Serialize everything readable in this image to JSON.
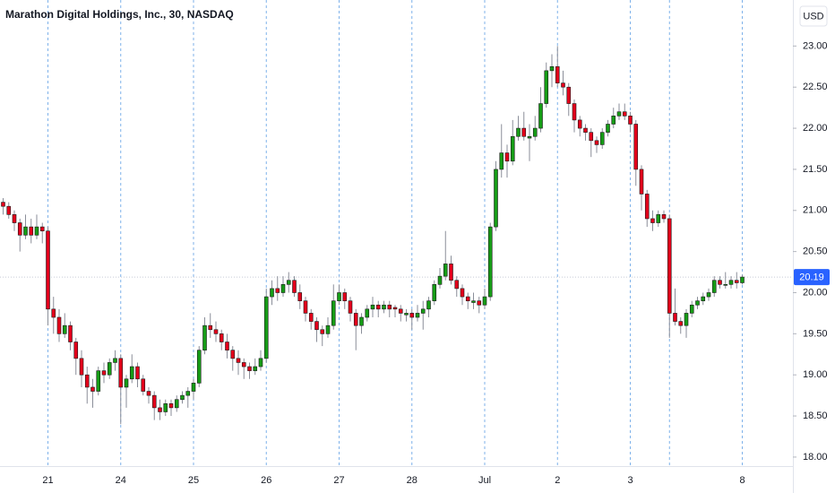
{
  "chart_data": {
    "type": "candlestick",
    "title": "Marathon Digital Holdings, Inc., 30, NASDAQ",
    "currency": "USD",
    "colors": {
      "up": "#169c16",
      "down": "#e3001b",
      "wick": "#8a8e99",
      "day_line": "#7fb2ea",
      "price_tag": "#2962ff"
    },
    "ylim": [
      17.89,
      23.56
    ],
    "yticks": [
      {
        "value": 18,
        "label": "18.00"
      },
      {
        "value": 18.5,
        "label": "18.50"
      },
      {
        "value": 19,
        "label": "19.00"
      },
      {
        "value": 19.5,
        "label": "19.50"
      },
      {
        "value": 20,
        "label": "20.00"
      },
      {
        "value": 20.5,
        "label": "20.50"
      },
      {
        "value": 21,
        "label": "21.00"
      },
      {
        "value": 21.5,
        "label": "21.50"
      },
      {
        "value": 22,
        "label": "22.00"
      },
      {
        "value": 22.5,
        "label": "22.50"
      },
      {
        "value": 23,
        "label": "23.00"
      }
    ],
    "day_starts": [
      8,
      21,
      34,
      47,
      60,
      73,
      86,
      99,
      112,
      119,
      132
    ],
    "day_labels": [
      "21",
      "24",
      "25",
      "26",
      "27",
      "28",
      "Jul",
      "2",
      "3",
      null,
      "8"
    ],
    "candles": [
      [
        21.1,
        21.15,
        20.95,
        21.05
      ],
      [
        21.05,
        21.1,
        20.9,
        20.95
      ],
      [
        20.95,
        21.0,
        20.75,
        20.85
      ],
      [
        20.85,
        20.9,
        20.5,
        20.7
      ],
      [
        20.7,
        20.95,
        20.65,
        20.8
      ],
      [
        20.8,
        20.9,
        20.6,
        20.7
      ],
      [
        20.7,
        20.95,
        20.65,
        20.8
      ],
      [
        20.8,
        20.85,
        20.6,
        20.75
      ],
      [
        20.75,
        20.8,
        19.6,
        19.8
      ],
      [
        19.8,
        19.95,
        19.5,
        19.7
      ],
      [
        19.7,
        19.8,
        19.4,
        19.5
      ],
      [
        19.5,
        19.75,
        19.45,
        19.6
      ],
      [
        19.6,
        19.65,
        19.3,
        19.4
      ],
      [
        19.4,
        19.45,
        19.0,
        19.2
      ],
      [
        19.2,
        19.3,
        18.85,
        19.0
      ],
      [
        19.0,
        19.1,
        18.65,
        18.85
      ],
      [
        18.85,
        18.95,
        18.6,
        18.8
      ],
      [
        18.8,
        19.1,
        18.75,
        19.05
      ],
      [
        19.05,
        19.15,
        18.9,
        19.0
      ],
      [
        19.0,
        19.2,
        18.95,
        19.15
      ],
      [
        19.15,
        19.3,
        19.05,
        19.2
      ],
      [
        19.2,
        19.25,
        18.4,
        18.85
      ],
      [
        18.85,
        19.0,
        18.6,
        18.95
      ],
      [
        18.95,
        19.25,
        18.9,
        19.1
      ],
      [
        19.1,
        19.15,
        18.85,
        18.95
      ],
      [
        18.95,
        19.0,
        18.75,
        18.8
      ],
      [
        18.8,
        18.85,
        18.65,
        18.75
      ],
      [
        18.75,
        18.8,
        18.45,
        18.6
      ],
      [
        18.6,
        18.7,
        18.45,
        18.55
      ],
      [
        18.55,
        18.7,
        18.5,
        18.65
      ],
      [
        18.65,
        18.7,
        18.5,
        18.6
      ],
      [
        18.6,
        18.75,
        18.55,
        18.7
      ],
      [
        18.7,
        18.8,
        18.65,
        18.75
      ],
      [
        18.75,
        18.85,
        18.6,
        18.8
      ],
      [
        18.8,
        18.95,
        18.7,
        18.9
      ],
      [
        18.9,
        19.35,
        18.85,
        19.3
      ],
      [
        19.3,
        19.7,
        19.25,
        19.6
      ],
      [
        19.6,
        19.75,
        19.45,
        19.55
      ],
      [
        19.55,
        19.65,
        19.4,
        19.5
      ],
      [
        19.5,
        19.55,
        19.3,
        19.4
      ],
      [
        19.4,
        19.5,
        19.2,
        19.3
      ],
      [
        19.3,
        19.35,
        19.05,
        19.2
      ],
      [
        19.2,
        19.3,
        19.0,
        19.15
      ],
      [
        19.15,
        19.2,
        18.95,
        19.1
      ],
      [
        19.1,
        19.15,
        18.95,
        19.05
      ],
      [
        19.05,
        19.2,
        19.0,
        19.1
      ],
      [
        19.1,
        19.3,
        19.05,
        19.2
      ],
      [
        19.2,
        20.05,
        19.15,
        19.95
      ],
      [
        19.95,
        20.15,
        19.85,
        20.05
      ],
      [
        20.05,
        20.2,
        19.9,
        20.0
      ],
      [
        20.0,
        20.2,
        19.95,
        20.1
      ],
      [
        20.1,
        20.25,
        20.0,
        20.15
      ],
      [
        20.15,
        20.2,
        19.95,
        20.0
      ],
      [
        20.0,
        20.1,
        19.8,
        19.9
      ],
      [
        19.9,
        19.95,
        19.65,
        19.75
      ],
      [
        19.75,
        19.8,
        19.55,
        19.65
      ],
      [
        19.65,
        19.7,
        19.4,
        19.55
      ],
      [
        19.55,
        19.6,
        19.35,
        19.5
      ],
      [
        19.5,
        19.7,
        19.45,
        19.6
      ],
      [
        19.6,
        20.1,
        19.55,
        19.9
      ],
      [
        19.9,
        20.1,
        19.85,
        20.0
      ],
      [
        20.0,
        20.05,
        19.8,
        19.9
      ],
      [
        19.9,
        19.95,
        19.65,
        19.75
      ],
      [
        19.75,
        19.8,
        19.3,
        19.6
      ],
      [
        19.6,
        19.75,
        19.5,
        19.7
      ],
      [
        19.7,
        19.85,
        19.65,
        19.8
      ],
      [
        19.8,
        19.95,
        19.7,
        19.85
      ],
      [
        19.85,
        19.9,
        19.7,
        19.8
      ],
      [
        19.8,
        19.9,
        19.75,
        19.85
      ],
      [
        19.85,
        19.9,
        19.7,
        19.8
      ],
      [
        19.82,
        19.85,
        19.7,
        19.8
      ],
      [
        19.8,
        19.85,
        19.65,
        19.75
      ],
      [
        19.73,
        19.8,
        19.65,
        19.75
      ],
      [
        19.75,
        19.8,
        19.55,
        19.7
      ],
      [
        19.7,
        19.85,
        19.65,
        19.75
      ],
      [
        19.75,
        19.9,
        19.55,
        19.8
      ],
      [
        19.8,
        19.95,
        19.7,
        19.9
      ],
      [
        19.9,
        20.15,
        19.85,
        20.1
      ],
      [
        20.1,
        20.3,
        20.05,
        20.2
      ],
      [
        20.2,
        20.75,
        20.15,
        20.35
      ],
      [
        20.35,
        20.45,
        20.1,
        20.15
      ],
      [
        20.15,
        20.2,
        19.95,
        20.05
      ],
      [
        20.05,
        20.1,
        19.85,
        19.95
      ],
      [
        19.95,
        20.0,
        19.8,
        19.9
      ],
      [
        19.88,
        20.0,
        19.8,
        19.9
      ],
      [
        19.9,
        19.95,
        19.75,
        19.85
      ],
      [
        19.85,
        20.05,
        19.8,
        19.95
      ],
      [
        19.95,
        20.85,
        19.9,
        20.8
      ],
      [
        20.8,
        21.6,
        20.75,
        21.5
      ],
      [
        21.5,
        22.05,
        21.4,
        21.7
      ],
      [
        21.7,
        21.8,
        21.4,
        21.6
      ],
      [
        21.6,
        22.1,
        21.55,
        21.9
      ],
      [
        21.9,
        22.15,
        21.85,
        22.0
      ],
      [
        22.0,
        22.2,
        21.85,
        21.9
      ],
      [
        21.88,
        22.05,
        21.6,
        21.9
      ],
      [
        21.9,
        22.15,
        21.85,
        22.0
      ],
      [
        22.0,
        22.5,
        21.95,
        22.3
      ],
      [
        22.3,
        22.8,
        22.25,
        22.7
      ],
      [
        22.7,
        22.9,
        22.5,
        22.75
      ],
      [
        22.75,
        23.0,
        22.5,
        22.55
      ],
      [
        22.55,
        22.7,
        22.4,
        22.5
      ],
      [
        22.5,
        22.55,
        22.15,
        22.3
      ],
      [
        22.3,
        22.35,
        21.95,
        22.1
      ],
      [
        22.1,
        22.15,
        21.9,
        22.0
      ],
      [
        22.0,
        22.05,
        21.85,
        21.95
      ],
      [
        21.95,
        22.0,
        21.65,
        21.85
      ],
      [
        21.85,
        21.9,
        21.7,
        21.8
      ],
      [
        21.8,
        22.0,
        21.75,
        21.95
      ],
      [
        21.95,
        22.1,
        21.9,
        22.05
      ],
      [
        22.05,
        22.25,
        22.0,
        22.15
      ],
      [
        22.15,
        22.3,
        22.1,
        22.2
      ],
      [
        22.2,
        22.3,
        22.1,
        22.15
      ],
      [
        22.15,
        22.2,
        21.95,
        22.05
      ],
      [
        22.05,
        22.1,
        21.3,
        21.5
      ],
      [
        21.5,
        21.55,
        21.0,
        21.2
      ],
      [
        21.2,
        21.25,
        20.8,
        20.9
      ],
      [
        20.9,
        21.0,
        20.75,
        20.85
      ],
      [
        20.85,
        21.0,
        20.8,
        20.95
      ],
      [
        20.95,
        21.0,
        20.85,
        20.9
      ],
      [
        20.9,
        20.95,
        19.45,
        19.75
      ],
      [
        19.75,
        20.05,
        19.6,
        19.65
      ],
      [
        19.65,
        19.7,
        19.5,
        19.6
      ],
      [
        19.6,
        19.8,
        19.45,
        19.75
      ],
      [
        19.75,
        19.9,
        19.7,
        19.85
      ],
      [
        19.85,
        19.95,
        19.8,
        19.9
      ],
      [
        19.9,
        20.0,
        19.85,
        19.95
      ],
      [
        19.95,
        20.05,
        19.9,
        20.0
      ],
      [
        20.0,
        20.2,
        19.95,
        20.15
      ],
      [
        20.15,
        20.2,
        20.05,
        20.1
      ],
      [
        20.1,
        20.25,
        20.05,
        20.1
      ],
      [
        20.1,
        20.2,
        20.05,
        20.15
      ],
      [
        20.15,
        20.25,
        20.05,
        20.12
      ],
      [
        20.12,
        20.22,
        20.1,
        20.19
      ]
    ]
  }
}
